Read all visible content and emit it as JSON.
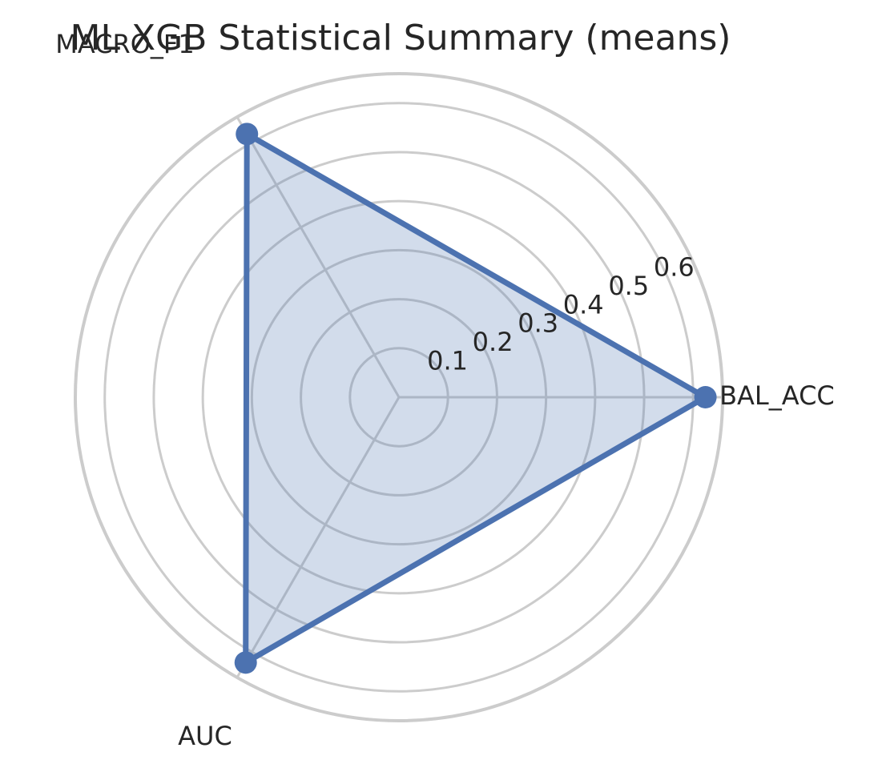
{
  "chart_data": {
    "type": "radar",
    "title": "ML XGB Statistical Summary (means)",
    "categories": [
      "BAL_ACC",
      "MACRO_F1",
      "AUC"
    ],
    "series": [
      {
        "values": [
          0.625,
          0.62,
          0.625
        ]
      }
    ],
    "radial_ticks": [
      "0.1",
      "0.2",
      "0.3",
      "0.4",
      "0.5",
      "0.6"
    ],
    "radial_tick_values": [
      0.1,
      0.2,
      0.3,
      0.4,
      0.5,
      0.6
    ],
    "rlim": [
      0,
      0.66
    ],
    "grid": true,
    "colors": {
      "line": "#4c72b0",
      "fill": "#4c72b0",
      "grid": "#cccccc",
      "text": "#262626"
    }
  }
}
